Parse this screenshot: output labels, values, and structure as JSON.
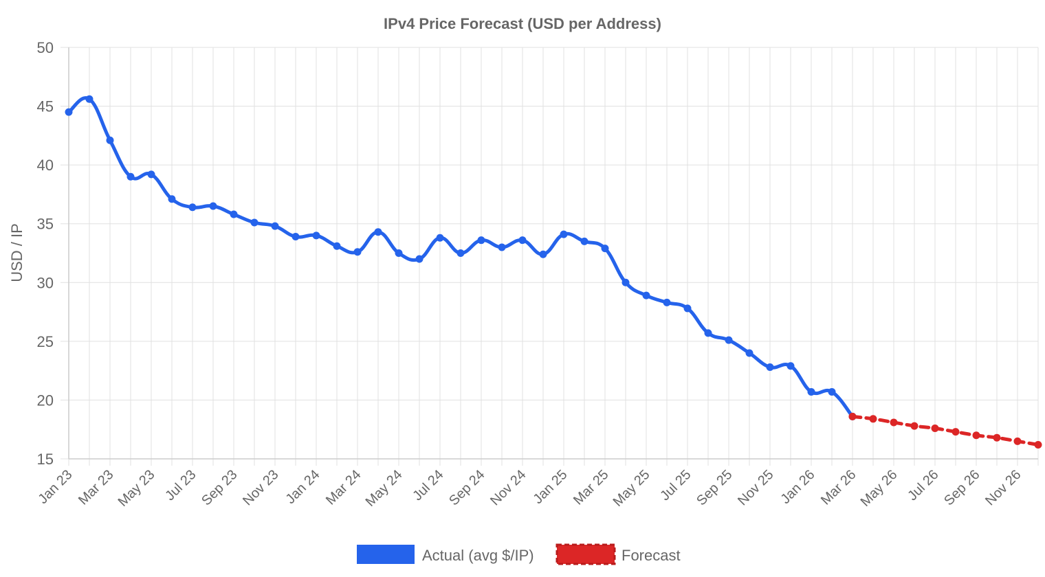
{
  "chart_data": {
    "type": "line",
    "title": "IPv4 Price Forecast (USD per Address)",
    "xlabel": "",
    "ylabel": "USD / IP",
    "ylim": [
      15,
      50
    ],
    "y_ticks": [
      15,
      20,
      25,
      30,
      35,
      40,
      45,
      50
    ],
    "x_tick_labels": [
      "Jan 23",
      "Mar 23",
      "May 23",
      "Jul 23",
      "Sep 23",
      "Nov 23",
      "Jan 24",
      "Mar 24",
      "May 24",
      "Jul 24",
      "Sep 24",
      "Nov 24",
      "Jan 25",
      "Mar 25",
      "May 25",
      "Jul 25",
      "Sep 25",
      "Nov 25",
      "Jan 26",
      "Mar 26",
      "May 26",
      "Jul 26",
      "Sep 26",
      "Nov 26"
    ],
    "grid": true,
    "legend_position": "bottom",
    "series": [
      {
        "name": "Actual (avg $/IP)",
        "color": "#2563eb",
        "style": "solid",
        "x": [
          "Jan 23",
          "Feb 23",
          "Mar 23",
          "Apr 23",
          "May 23",
          "Jun 23",
          "Jul 23",
          "Aug 23",
          "Sep 23",
          "Oct 23",
          "Nov 23",
          "Dec 23",
          "Jan 24",
          "Feb 24",
          "Mar 24",
          "Apr 24",
          "May 24",
          "Jun 24",
          "Jul 24",
          "Aug 24",
          "Sep 24",
          "Oct 24",
          "Nov 24",
          "Dec 24",
          "Jan 25",
          "Feb 25",
          "Mar 25",
          "Apr 25",
          "May 25",
          "Jun 25",
          "Jul 25",
          "Aug 25",
          "Sep 25",
          "Oct 25",
          "Nov 25",
          "Dec 25",
          "Jan 26",
          "Feb 26",
          "Mar 26"
        ],
        "values": [
          44.5,
          45.6,
          42.1,
          39.0,
          39.2,
          37.1,
          36.4,
          36.5,
          35.8,
          35.1,
          34.8,
          33.9,
          34.0,
          33.1,
          32.6,
          34.3,
          32.5,
          32.0,
          33.8,
          32.5,
          33.6,
          33.0,
          33.6,
          32.4,
          34.1,
          33.5,
          32.9,
          30.0,
          28.9,
          28.3,
          27.8,
          25.7,
          25.1,
          24.0,
          22.8,
          22.9,
          20.7,
          20.7,
          18.6
        ]
      },
      {
        "name": "Forecast",
        "color": "#dc2626",
        "style": "dashed",
        "x": [
          "Mar 26",
          "Apr 26",
          "May 26",
          "Jun 26",
          "Jul 26",
          "Aug 26",
          "Sep 26",
          "Oct 26",
          "Nov 26",
          "Dec 26"
        ],
        "values": [
          18.6,
          18.4,
          18.1,
          17.8,
          17.6,
          17.3,
          17.0,
          16.8,
          16.5,
          16.2
        ]
      }
    ]
  }
}
